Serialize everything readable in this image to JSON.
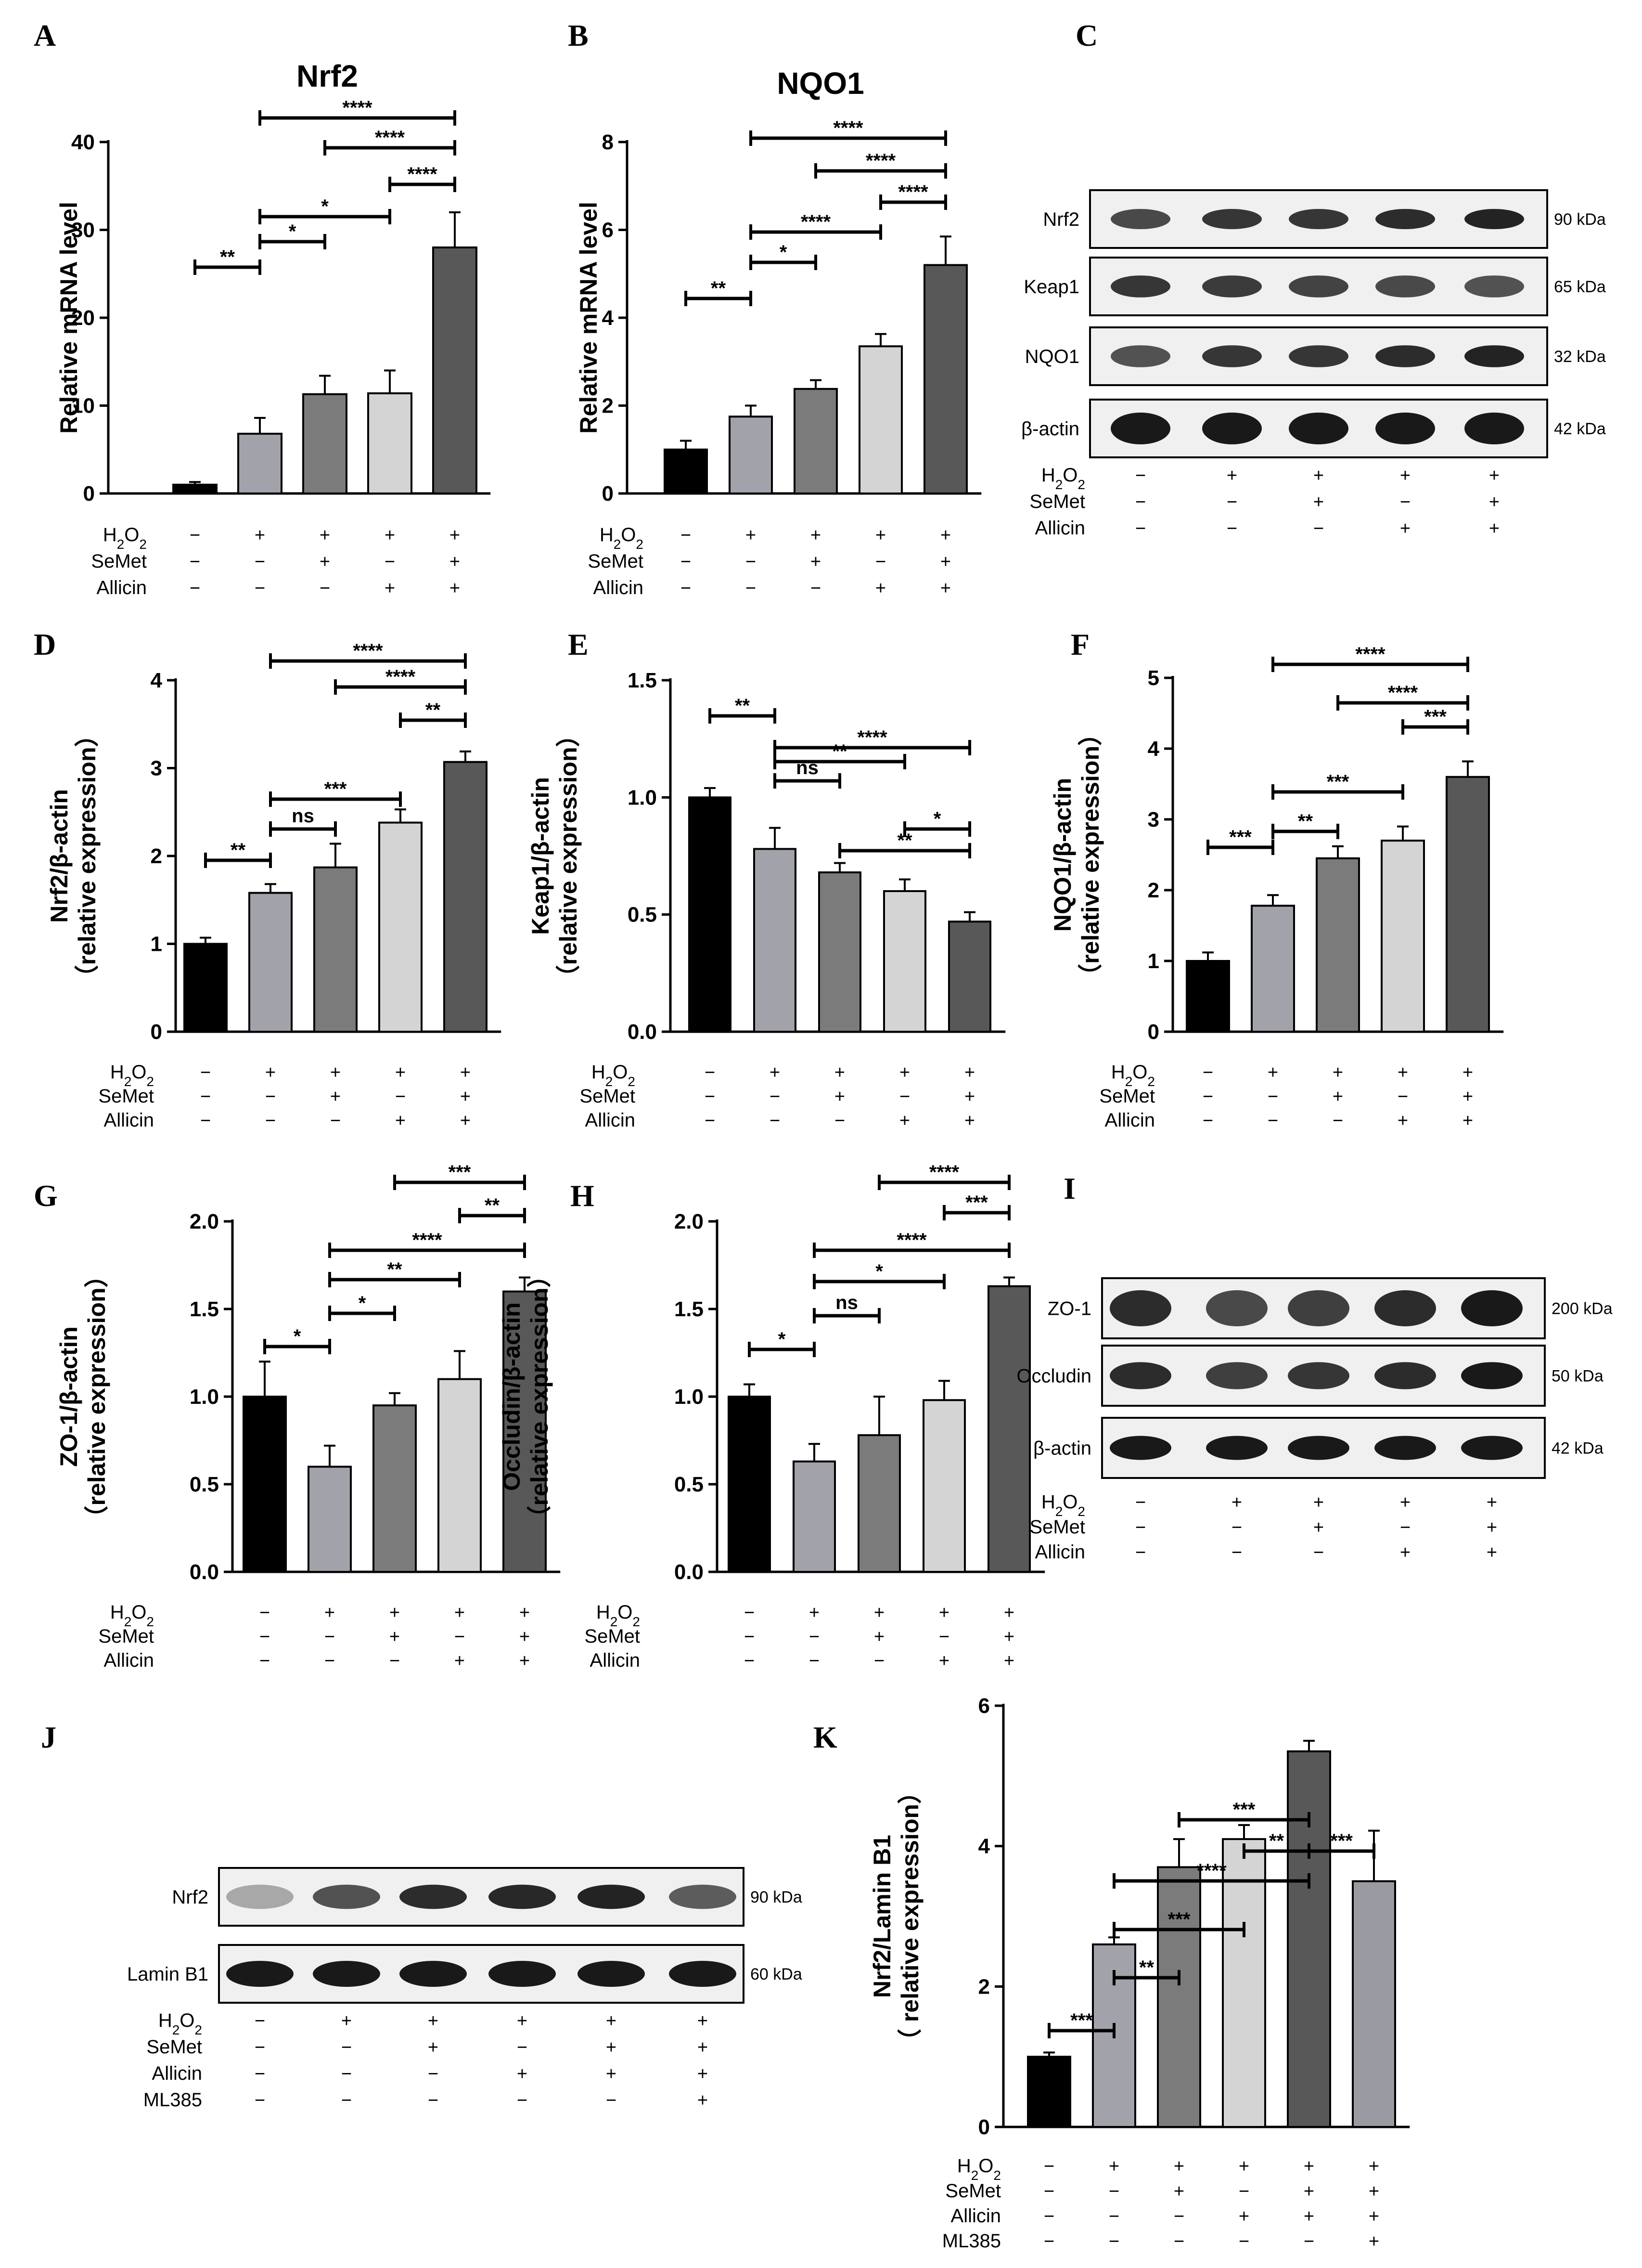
{
  "figure": {
    "panel_letters": [
      "A",
      "B",
      "C",
      "D",
      "E",
      "F",
      "G",
      "H",
      "I",
      "J",
      "K"
    ],
    "treatment_labels": {
      "h2o2_main": "H",
      "h2o2_sub1": "2",
      "h2o2_mid": "O",
      "h2o2_sub2": "2",
      "semet": "SeMet",
      "allicin": "Allicin",
      "ml385": "ML385"
    },
    "groups5": [
      {
        "h2o2": "−",
        "semet": "−",
        "allicin": "−"
      },
      {
        "h2o2": "+",
        "semet": "−",
        "allicin": "−"
      },
      {
        "h2o2": "+",
        "semet": "+",
        "allicin": "−"
      },
      {
        "h2o2": "+",
        "semet": "−",
        "allicin": "+"
      },
      {
        "h2o2": "+",
        "semet": "+",
        "allicin": "+"
      }
    ],
    "groups6": [
      {
        "h2o2": "−",
        "semet": "−",
        "allicin": "−",
        "ml385": "−"
      },
      {
        "h2o2": "+",
        "semet": "−",
        "allicin": "−",
        "ml385": "−"
      },
      {
        "h2o2": "+",
        "semet": "+",
        "allicin": "−",
        "ml385": "−"
      },
      {
        "h2o2": "+",
        "semet": "−",
        "allicin": "+",
        "ml385": "−"
      },
      {
        "h2o2": "+",
        "semet": "+",
        "allicin": "+",
        "ml385": "−"
      },
      {
        "h2o2": "+",
        "semet": "+",
        "allicin": "+",
        "ml385": "+"
      }
    ],
    "bar_colors": [
      "#000000",
      "#a2a2aa",
      "#7b7b7b",
      "#d4d4d4",
      "#585858",
      "#9a9aa2"
    ]
  },
  "chart_data": [
    {
      "panel": "A",
      "type": "bar",
      "title": "Nrf2",
      "ylabel": "Relative mRNA level",
      "ylim": [
        0,
        40
      ],
      "yticks": [
        "0",
        "10",
        "20",
        "30",
        "40"
      ],
      "values": [
        1,
        6.8,
        11.3,
        11.4,
        28
      ],
      "errors": [
        0.3,
        1.8,
        2.1,
        2.6,
        4
      ],
      "comparisons": [
        {
          "from": 0,
          "to": 1,
          "label": "**"
        },
        {
          "from": 1,
          "to": 2,
          "label": "*"
        },
        {
          "from": 1,
          "to": 3,
          "label": "*"
        },
        {
          "from": 3,
          "to": 4,
          "label": "****"
        },
        {
          "from": 2,
          "to": 4,
          "label": "****"
        },
        {
          "from": 1,
          "to": 4,
          "label": "****"
        }
      ]
    },
    {
      "panel": "B",
      "type": "bar",
      "title": "NQO1",
      "ylabel": "Relative mRNA level",
      "ylim": [
        0,
        8
      ],
      "yticks": [
        "0",
        "2",
        "4",
        "6",
        "8"
      ],
      "values": [
        1,
        1.75,
        2.38,
        3.35,
        5.2
      ],
      "errors": [
        0.2,
        0.25,
        0.2,
        0.28,
        0.65
      ],
      "comparisons": [
        {
          "from": 0,
          "to": 1,
          "label": "**"
        },
        {
          "from": 1,
          "to": 2,
          "label": "*"
        },
        {
          "from": 1,
          "to": 3,
          "label": "****"
        },
        {
          "from": 3,
          "to": 4,
          "label": "****"
        },
        {
          "from": 2,
          "to": 4,
          "label": "****"
        },
        {
          "from": 1,
          "to": 4,
          "label": "****"
        }
      ]
    },
    {
      "panel": "D",
      "type": "bar",
      "title": "",
      "ylabel": "Nrf2/β-actin",
      "ylabel2": "（relative expression）",
      "ylim": [
        0,
        4
      ],
      "yticks": [
        "0",
        "1",
        "2",
        "3",
        "4"
      ],
      "values": [
        1,
        1.58,
        1.87,
        2.38,
        3.07
      ],
      "errors": [
        0.07,
        0.1,
        0.27,
        0.15,
        0.12
      ],
      "comparisons": [
        {
          "from": 0,
          "to": 1,
          "label": "**"
        },
        {
          "from": 1,
          "to": 2,
          "label": "ns"
        },
        {
          "from": 1,
          "to": 3,
          "label": "***"
        },
        {
          "from": 3,
          "to": 4,
          "label": "**"
        },
        {
          "from": 2,
          "to": 4,
          "label": "****"
        },
        {
          "from": 1,
          "to": 4,
          "label": "****"
        }
      ]
    },
    {
      "panel": "E",
      "type": "bar",
      "title": "",
      "ylabel": "Keap1/β-actin",
      "ylabel2": "（relative expression）",
      "ylim": [
        0,
        1.5
      ],
      "yticks": [
        "0.0",
        "0.5",
        "1.0",
        "1.5"
      ],
      "values": [
        1.0,
        0.78,
        0.68,
        0.6,
        0.47
      ],
      "errors": [
        0.04,
        0.09,
        0.04,
        0.05,
        0.04
      ],
      "comparisons": [
        {
          "from": 0,
          "to": 1,
          "label": "**"
        },
        {
          "from": 1,
          "to": 2,
          "label": "ns"
        },
        {
          "from": 1,
          "to": 3,
          "label": "**"
        },
        {
          "from": 2,
          "to": 4,
          "label": "**"
        },
        {
          "from": 3,
          "to": 4,
          "label": "*"
        },
        {
          "from": 1,
          "to": 4,
          "label": "****"
        }
      ]
    },
    {
      "panel": "F",
      "type": "bar",
      "title": "",
      "ylabel": "NQO1/β-actin",
      "ylabel2": "（relative expression）",
      "ylim": [
        0,
        5
      ],
      "yticks": [
        "0",
        "1",
        "2",
        "3",
        "4",
        "5"
      ],
      "values": [
        1,
        1.78,
        2.45,
        2.7,
        3.6
      ],
      "errors": [
        0.12,
        0.15,
        0.17,
        0.2,
        0.22
      ],
      "comparisons": [
        {
          "from": 0,
          "to": 1,
          "label": "***"
        },
        {
          "from": 1,
          "to": 2,
          "label": "**"
        },
        {
          "from": 1,
          "to": 3,
          "label": "***"
        },
        {
          "from": 3,
          "to": 4,
          "label": "***"
        },
        {
          "from": 2,
          "to": 4,
          "label": "****"
        },
        {
          "from": 1,
          "to": 4,
          "label": "****"
        }
      ]
    },
    {
      "panel": "G",
      "type": "bar",
      "title": "",
      "ylabel": "ZO-1/β-actin",
      "ylabel2": "（relative expression）",
      "ylim": [
        0,
        2
      ],
      "yticks": [
        "0.0",
        "0.5",
        "1.0",
        "1.5",
        "2.0"
      ],
      "values": [
        1.0,
        0.6,
        0.95,
        1.1,
        1.6
      ],
      "errors": [
        0.2,
        0.12,
        0.07,
        0.16,
        0.08
      ],
      "comparisons": [
        {
          "from": 0,
          "to": 1,
          "label": "*"
        },
        {
          "from": 1,
          "to": 2,
          "label": "*"
        },
        {
          "from": 1,
          "to": 3,
          "label": "**"
        },
        {
          "from": 1,
          "to": 4,
          "label": "****"
        },
        {
          "from": 3,
          "to": 4,
          "label": "**"
        },
        {
          "from": 2,
          "to": 4,
          "label": "***"
        }
      ]
    },
    {
      "panel": "H",
      "type": "bar",
      "title": "",
      "ylabel": "Occludin/β-actin",
      "ylabel2": "（relative expression）",
      "ylim": [
        0,
        2
      ],
      "yticks": [
        "0.0",
        "0.5",
        "1.0",
        "1.5",
        "2.0"
      ],
      "values": [
        1.0,
        0.63,
        0.78,
        0.98,
        1.63
      ],
      "errors": [
        0.07,
        0.1,
        0.22,
        0.11,
        0.05
      ],
      "comparisons": [
        {
          "from": 0,
          "to": 1,
          "label": "*"
        },
        {
          "from": 1,
          "to": 2,
          "label": "ns"
        },
        {
          "from": 1,
          "to": 3,
          "label": "*"
        },
        {
          "from": 1,
          "to": 4,
          "label": "****"
        },
        {
          "from": 3,
          "to": 4,
          "label": "***"
        },
        {
          "from": 2,
          "to": 4,
          "label": "****"
        }
      ]
    },
    {
      "panel": "K",
      "type": "bar",
      "title": "",
      "ylabel": "Nrf2/Lamin B1",
      "ylabel2": "（ relative expression）",
      "ylim": [
        0,
        6
      ],
      "yticks": [
        "0",
        "2",
        "4",
        "6"
      ],
      "values": [
        1,
        2.6,
        3.7,
        4.1,
        5.35
      ],
      "values_extra": [
        3.5
      ],
      "errors": [
        0.06,
        0.1,
        0.4,
        0.2,
        0.15
      ],
      "errors_extra": [
        0.72
      ],
      "comparisons": [
        {
          "from": 0,
          "to": 1,
          "label": "***"
        },
        {
          "from": 1,
          "to": 2,
          "label": "**"
        },
        {
          "from": 1,
          "to": 3,
          "label": "***"
        },
        {
          "from": 1,
          "to": 4,
          "label": "****"
        },
        {
          "from": 3,
          "to": 4,
          "label": "**"
        },
        {
          "from": 4,
          "to": 5,
          "label": "***"
        },
        {
          "from": 2,
          "to": 4,
          "label": "***"
        }
      ]
    }
  ],
  "blots": [
    {
      "panel": "C",
      "lanes": 5,
      "rows": [
        {
          "label": "Nrf2",
          "kda": "90 kDa"
        },
        {
          "label": "Keap1",
          "kda": "65 kDa"
        },
        {
          "label": "NQO1",
          "kda": "32 kDa"
        },
        {
          "label": "β-actin",
          "kda": "42 kDa"
        }
      ]
    },
    {
      "panel": "I",
      "lanes": 5,
      "rows": [
        {
          "label": "ZO-1",
          "kda": "200 kDa"
        },
        {
          "label": "Occludin",
          "kda": "50 kDa"
        },
        {
          "label": "β-actin",
          "kda": "42 kDa"
        }
      ]
    },
    {
      "panel": "J",
      "lanes": 6,
      "rows": [
        {
          "label": "Nrf2",
          "kda": "90 kDa"
        },
        {
          "label": "Lamin B1",
          "kda": "60 kDa"
        }
      ]
    }
  ]
}
